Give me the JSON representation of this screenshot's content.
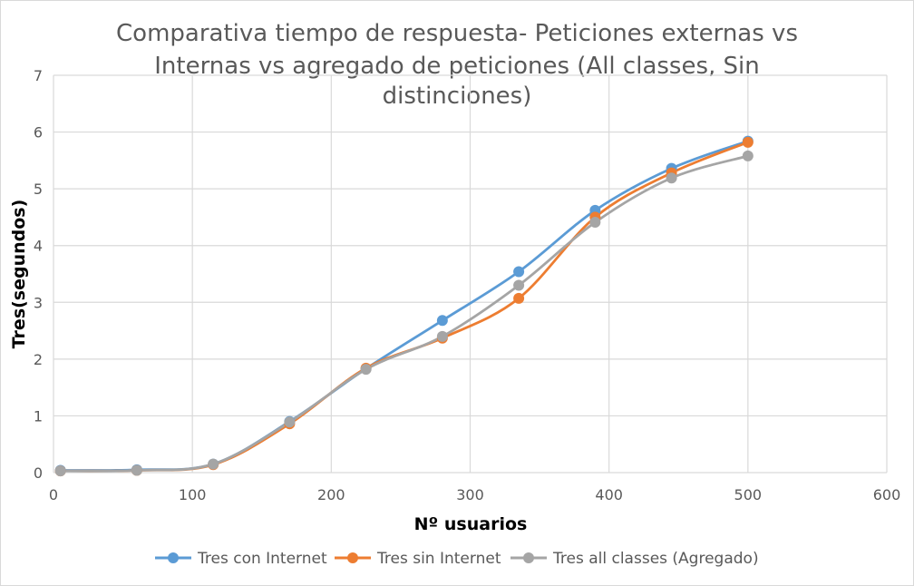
{
  "chart_data": {
    "type": "line",
    "title_lines": [
      "Comparativa tiempo de respuesta- Peticiones externas vs",
      "Internas vs agregado de peticiones (All classes, Sin",
      "distinciones)"
    ],
    "xlabel": "Nº usuarios",
    "ylabel": "Tres(segundos)",
    "xlim": [
      0,
      600
    ],
    "ylim": [
      0,
      7
    ],
    "x_ticks": [
      0,
      100,
      200,
      300,
      400,
      500,
      600
    ],
    "y_ticks": [
      0,
      1,
      2,
      3,
      4,
      5,
      6,
      7
    ],
    "grid": true,
    "legend_position": "bottom",
    "smooth": true,
    "series": [
      {
        "name": "Tres con Internet",
        "color": "#5b9bd5",
        "points": [
          [
            5,
            0.04
          ],
          [
            60,
            0.05
          ],
          [
            115,
            0.15
          ],
          [
            170,
            0.9
          ],
          [
            225,
            1.83
          ],
          [
            280,
            2.68
          ],
          [
            335,
            3.54
          ],
          [
            390,
            4.62
          ],
          [
            445,
            5.36
          ],
          [
            500,
            5.84
          ]
        ]
      },
      {
        "name": "Tres sin Internet",
        "color": "#ed7d31",
        "points": [
          [
            5,
            0.03
          ],
          [
            60,
            0.04
          ],
          [
            115,
            0.14
          ],
          [
            170,
            0.86
          ],
          [
            225,
            1.84
          ],
          [
            280,
            2.37
          ],
          [
            335,
            3.07
          ],
          [
            390,
            4.5
          ],
          [
            445,
            5.28
          ],
          [
            500,
            5.82
          ]
        ]
      },
      {
        "name": "Tres all classes (Agregado)",
        "color": "#a5a5a5",
        "points": [
          [
            5,
            0.03
          ],
          [
            60,
            0.04
          ],
          [
            115,
            0.15
          ],
          [
            170,
            0.89
          ],
          [
            225,
            1.82
          ],
          [
            280,
            2.4
          ],
          [
            335,
            3.3
          ],
          [
            390,
            4.41
          ],
          [
            445,
            5.19
          ],
          [
            500,
            5.58
          ]
        ]
      }
    ]
  }
}
